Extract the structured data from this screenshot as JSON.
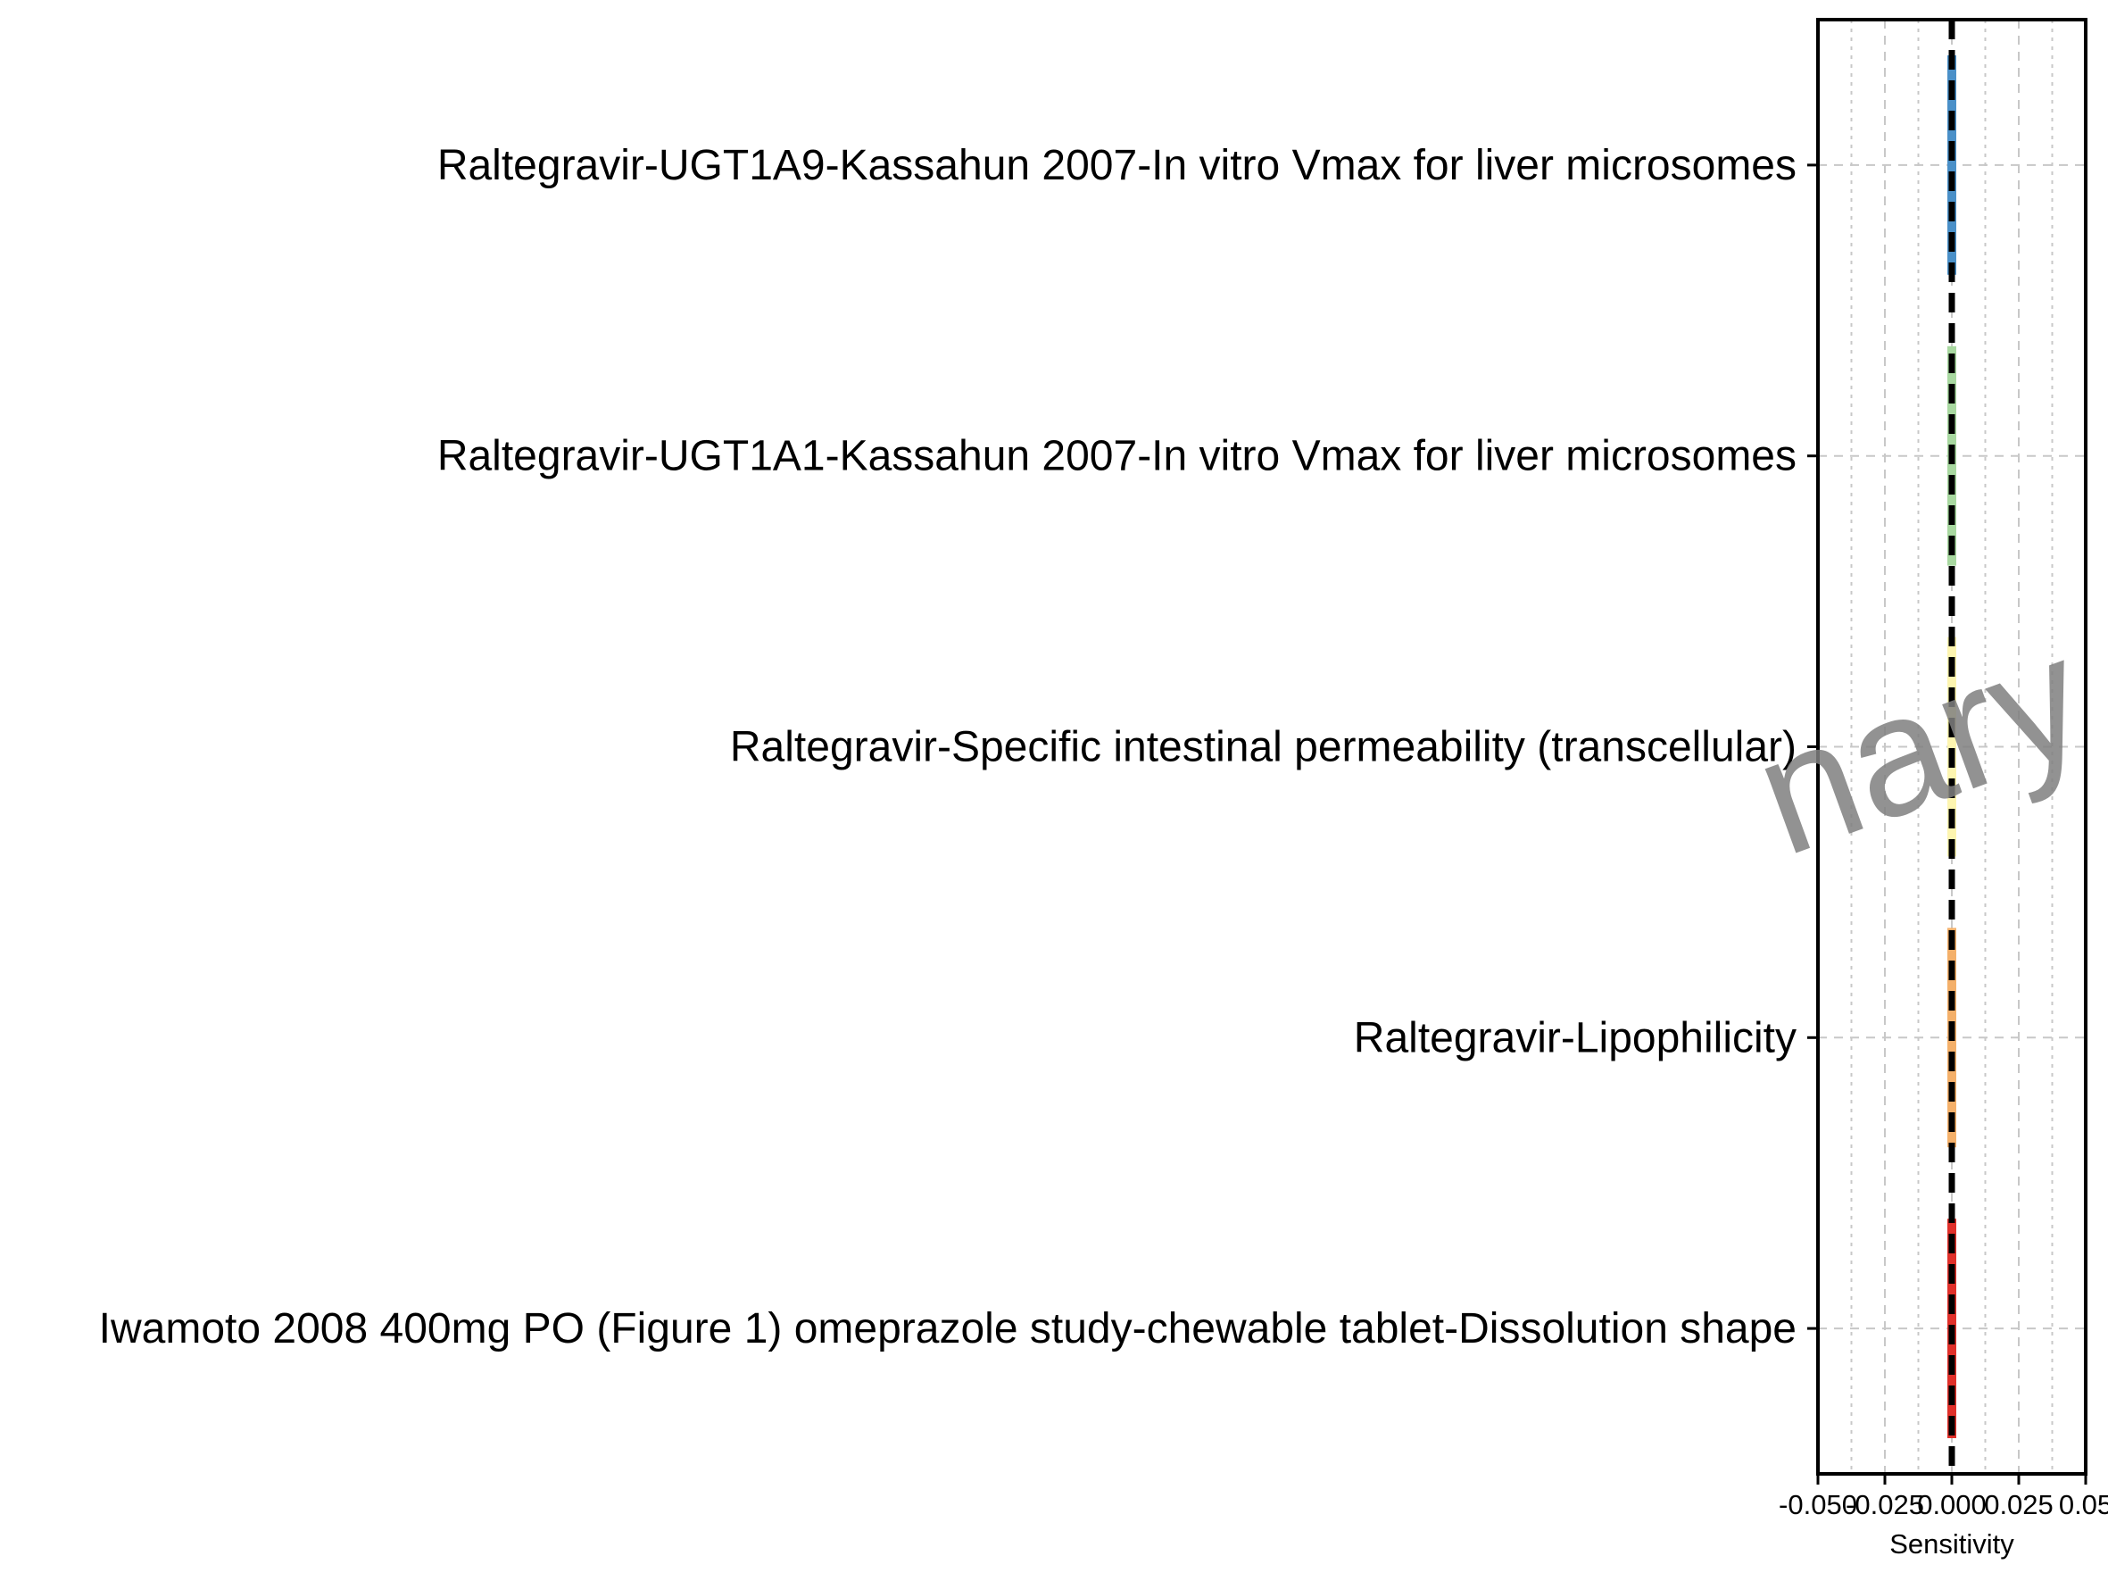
{
  "chart_data": {
    "type": "bar",
    "orientation": "horizontal",
    "xlabel": "Sensitivity",
    "ylabel": "",
    "xlim": [
      -0.05,
      0.05
    ],
    "x_ticks": [
      -0.05,
      -0.025,
      0.0,
      0.025,
      0.05
    ],
    "x_tick_labels": [
      "-0.050",
      "-0.025",
      "0.000",
      "0.025",
      "0.05"
    ],
    "grid": true,
    "zero_line": 0.0,
    "categories": [
      "Raltegravir-UGT1A9-Kassahun 2007-In vitro Vmax for liver microsomes",
      "Raltegravir-UGT1A1-Kassahun 2007-In vitro Vmax for liver microsomes",
      "Raltegravir-Specific intestinal permeability (transcellular)",
      "Raltegravir-Lipophilicity",
      "Iwamoto 2008 400mg PO (Figure 1) omeprazole study-chewable tablet-Dissolution shape"
    ],
    "values": [
      0,
      0,
      0,
      0,
      0
    ],
    "colors": [
      "#4a90c8",
      "#a8d8a0",
      "#fdf5b0",
      "#f4b06a",
      "#e0302a"
    ],
    "watermark": "nary a"
  }
}
